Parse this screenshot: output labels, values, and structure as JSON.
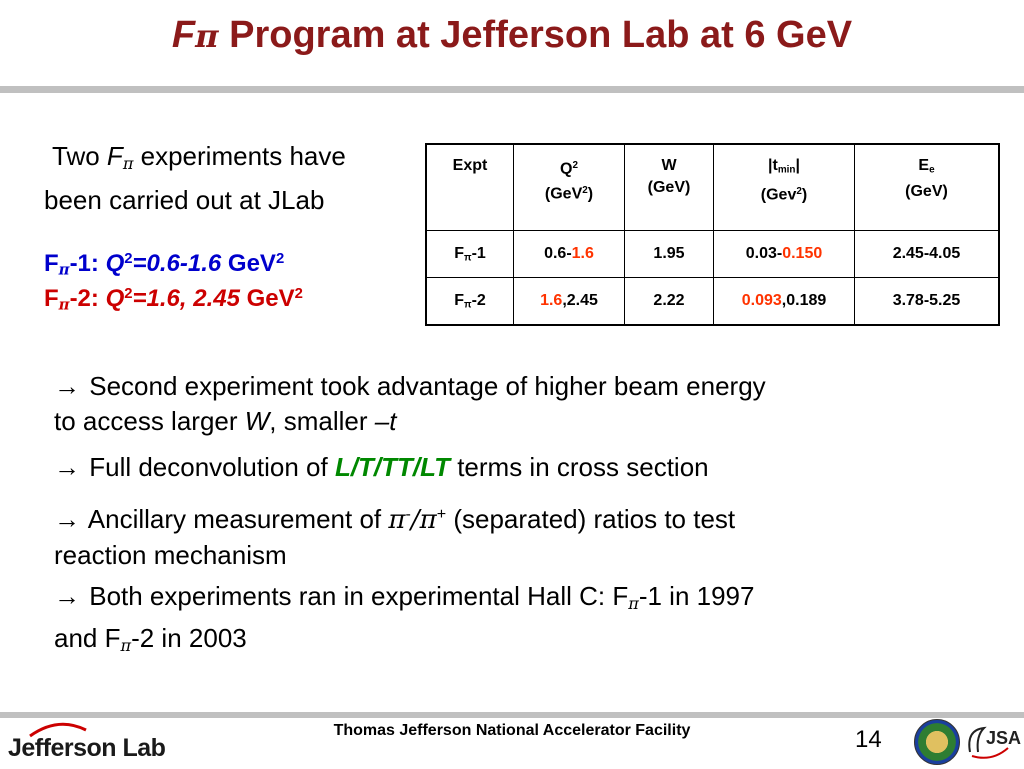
{
  "title": {
    "f": "F",
    "pi": "π",
    "rest": " Program at Jefferson Lab at 6 GeV"
  },
  "intro": {
    "l1a": "Two ",
    "f": "F",
    "pi": "π",
    "l1b": " experiments have",
    "l2": "been carried out at JLab"
  },
  "experiments": [
    {
      "prefix": "F",
      "pi": "π",
      "label": "-1: ",
      "q": "Q",
      "exp": "2",
      "range": "=0.6-1.6",
      "unit": " GeV",
      "unit_exp": "2"
    },
    {
      "prefix": "F",
      "pi": "π",
      "label": "-2: ",
      "q": "Q",
      "exp": "2",
      "range": "=1.6, 2.45",
      "unit": " GeV",
      "unit_exp": "2"
    }
  ],
  "table": {
    "headers": {
      "expt": "Expt",
      "q_main": "Q",
      "q_sup": "2",
      "q_unit_a": "(GeV",
      "q_unit_sup": "2",
      "q_unit_b": ")",
      "w_main": "W",
      "w_unit": "(GeV)",
      "t_a": "|t",
      "t_sub": "min",
      "t_b": "|",
      "t_unit_a": "(Gev",
      "t_unit_sup": "2",
      "t_unit_b": ")",
      "e_main": "E",
      "e_sub": "e",
      "e_unit": "(GeV)"
    },
    "rows": [
      {
        "expt_a": "F",
        "expt_sub": "π",
        "expt_b": "-1",
        "q_a": "0.6-",
        "q_hl": "1.6",
        "q_b": "",
        "w": "1.95",
        "t_a": "0.03-",
        "t_hl": "0.150",
        "t_b": "",
        "e": "2.45-4.05"
      },
      {
        "expt_a": "F",
        "expt_sub": "π",
        "expt_b": "-2",
        "q_a": "",
        "q_hl": "1.6",
        "q_b": ",2.45",
        "w": "2.22",
        "t_a": "",
        "t_hl": "0.093",
        "t_b": ",0.189",
        "e": "3.78-5.25"
      }
    ]
  },
  "bullets": {
    "arrow": "→",
    "b1_a": " Second experiment took advantage of higher beam energy",
    "b1_b": "to access larger ",
    "b1_w": "W",
    "b1_c": ", smaller ",
    "b1_t": "–t",
    "b2_a": " Full deconvolution of ",
    "b2_hl": "L/T/TT/LT",
    "b2_b": " terms in cross section",
    "b3_a": " Ancillary measurement of ",
    "b3_pi1": "π",
    "b3_sup1": "-",
    "b3_slash": "/",
    "b3_pi2": "π",
    "b3_sup2": "+",
    "b3_b": " (separated) ratios to test",
    "b3_c": "reaction mechanism",
    "b4_a": " Both experiments ran in experimental Hall C: F",
    "b4_sub1": "π",
    "b4_b": "-1 in 1997",
    "b4_c": "and F",
    "b4_sub2": "π",
    "b4_d": "-2 in 2003"
  },
  "footer": {
    "text": "Thomas Jefferson National Accelerator Facility",
    "page": "14",
    "logo": "Jefferson Lab",
    "jsa": "JSA"
  },
  "colors": {
    "title": "#8b1a1a",
    "experiment_label": "#0000cc",
    "experiment_value": "#cc0000",
    "highlight": "#ff3300",
    "bullet_highlight": "#008800"
  }
}
